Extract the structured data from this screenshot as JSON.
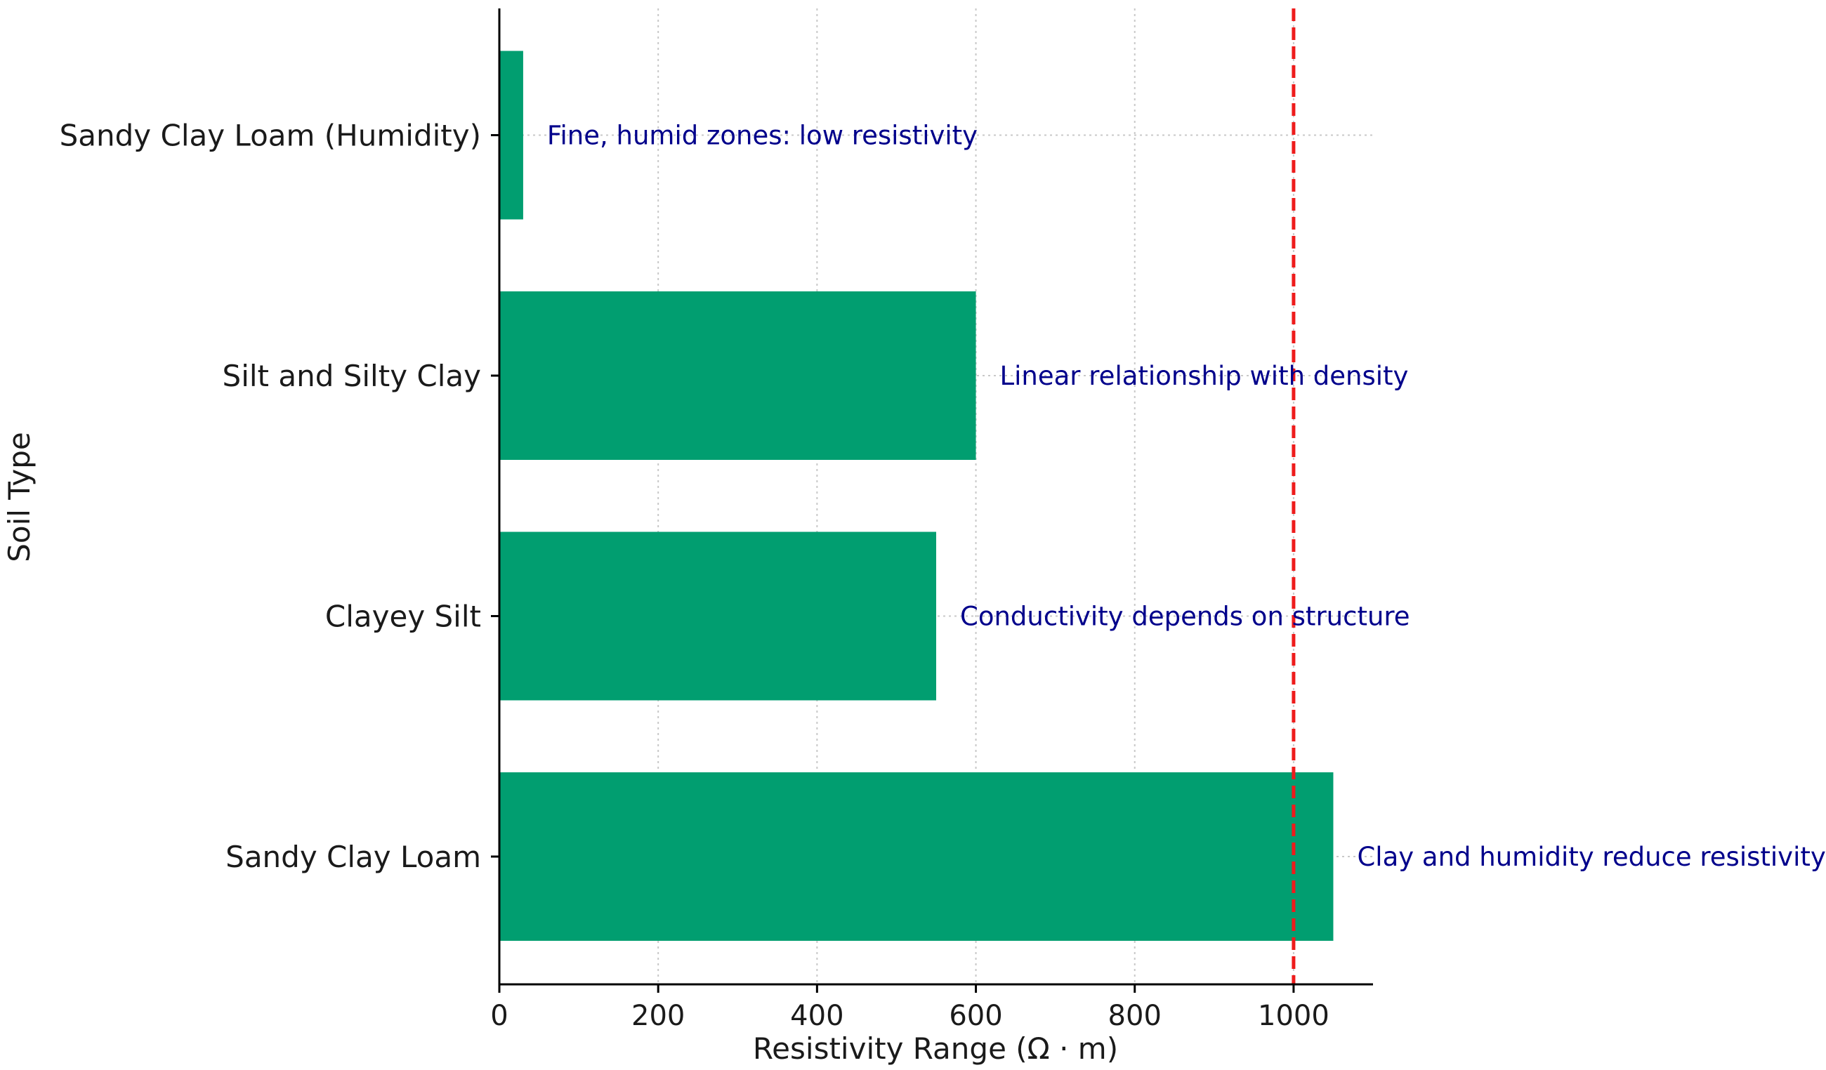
{
  "chart_data": {
    "type": "bar",
    "orientation": "horizontal",
    "categories": [
      "Sandy Clay Loam",
      "Clayey Silt",
      "Silt and Silty Clay",
      "Sandy Clay Loam (Humidity)"
    ],
    "values": [
      1050,
      550,
      600,
      30
    ],
    "annotations": [
      "Clay and humidity reduce resistivity",
      "Conductivity depends on structure",
      "Linear relationship with density",
      "Fine, humid zones: low resistivity"
    ],
    "xlabel": "Resistivity Range (Ω · m)",
    "ylabel": "Soil Type",
    "title": "",
    "xlim": [
      0,
      1100
    ],
    "xticks": [
      0,
      200,
      400,
      600,
      800,
      1000
    ],
    "reference_line": {
      "x": 1000,
      "style": "dashed",
      "color": "#ee1c1c"
    },
    "grid": true,
    "bar_color": "#019e70",
    "annotation_color": "#00008b"
  }
}
